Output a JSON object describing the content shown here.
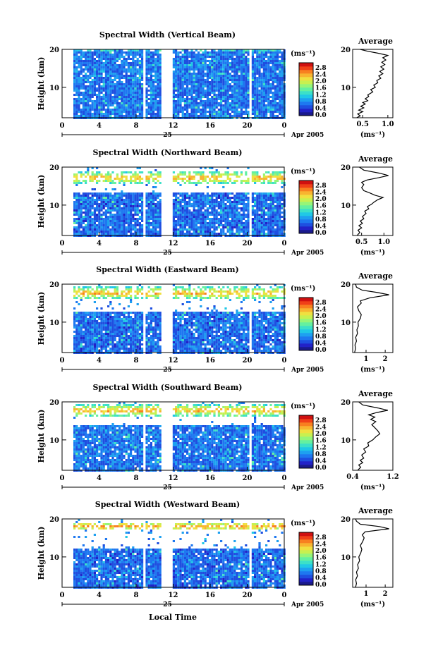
{
  "figure": {
    "xlabel": "Local Time",
    "day_label": "25",
    "month_label": "Apr 2005",
    "ylabel": "Height (km)",
    "colorbar_unit": "(ms⁻¹)",
    "average_title": "Average",
    "average_unit": "(ms⁻¹)"
  },
  "chart_data": [
    {
      "type": "heatmap",
      "title": "Spectral Width (Vertical Beam)",
      "x_ticks": [
        "0",
        "4",
        "8",
        "12",
        "16",
        "20",
        "0"
      ],
      "xlim": [
        0,
        24
      ],
      "y_ticks": [
        "20",
        "10"
      ],
      "ylim": [
        2,
        20
      ],
      "colorbar_ticks": [
        "2.8",
        "2.4",
        "2.0",
        "1.6",
        "1.2",
        "0.8",
        "0.4",
        "0.0"
      ],
      "gaps_hours": [
        [
          0,
          1.0
        ],
        [
          8.6,
          8.9
        ],
        [
          10.7,
          11.9
        ],
        [
          20.0,
          20.3
        ]
      ],
      "data_top_km": 19.6,
      "band_km": [],
      "low_level": 0.45,
      "average_profile": {
        "type": "line",
        "xlim": [
          0.3,
          1.1
        ],
        "x_ticks": [
          "0.5",
          "1.0"
        ],
        "y_ticks": [
          "20",
          "10"
        ],
        "points": [
          [
            0.38,
            2.0
          ],
          [
            0.45,
            2.5
          ],
          [
            0.4,
            3.0
          ],
          [
            0.5,
            3.6
          ],
          [
            0.42,
            4.0
          ],
          [
            0.52,
            4.6
          ],
          [
            0.46,
            5.0
          ],
          [
            0.55,
            5.6
          ],
          [
            0.5,
            6.0
          ],
          [
            0.6,
            6.5
          ],
          [
            0.55,
            7.0
          ],
          [
            0.62,
            7.6
          ],
          [
            0.6,
            8.0
          ],
          [
            0.7,
            8.8
          ],
          [
            0.66,
            9.4
          ],
          [
            0.75,
            10.0
          ],
          [
            0.72,
            10.6
          ],
          [
            0.8,
            11.2
          ],
          [
            0.78,
            11.8
          ],
          [
            0.86,
            12.4
          ],
          [
            0.82,
            13.0
          ],
          [
            0.9,
            13.6
          ],
          [
            0.84,
            14.2
          ],
          [
            0.92,
            14.8
          ],
          [
            0.86,
            15.4
          ],
          [
            0.94,
            16.0
          ],
          [
            0.88,
            16.6
          ],
          [
            0.96,
            17.2
          ],
          [
            0.9,
            17.8
          ],
          [
            1.0,
            18.4
          ],
          [
            0.8,
            19.0
          ],
          [
            0.6,
            19.5
          ],
          [
            0.45,
            20.0
          ]
        ]
      }
    },
    {
      "type": "heatmap",
      "title": "Spectral Width (Northward Beam)",
      "x_ticks": [
        "0",
        "4",
        "8",
        "12",
        "16",
        "20",
        "0"
      ],
      "xlim": [
        0,
        24
      ],
      "y_ticks": [
        "20",
        "10"
      ],
      "ylim": [
        2,
        20
      ],
      "colorbar_ticks": [
        "2.8",
        "2.4",
        "2.0",
        "1.6",
        "1.2",
        "0.8",
        "0.4",
        "0.0"
      ],
      "gaps_hours": [
        [
          0,
          1.0
        ],
        [
          8.6,
          8.9
        ],
        [
          10.7,
          11.9
        ],
        [
          20.0,
          20.3
        ]
      ],
      "data_top_km": 13.4,
      "band_km": [
        16.0,
        19.0
      ],
      "low_level": 0.4,
      "average_profile": {
        "type": "line",
        "xlim": [
          0.3,
          1.2
        ],
        "x_ticks": [
          "0.5",
          "1.0"
        ],
        "y_ticks": [
          "20",
          "10"
        ],
        "points": [
          [
            0.4,
            2.0
          ],
          [
            0.46,
            2.8
          ],
          [
            0.42,
            3.4
          ],
          [
            0.5,
            4.0
          ],
          [
            0.44,
            4.6
          ],
          [
            0.52,
            5.2
          ],
          [
            0.47,
            5.8
          ],
          [
            0.55,
            6.4
          ],
          [
            0.52,
            7.0
          ],
          [
            0.6,
            7.8
          ],
          [
            0.57,
            8.4
          ],
          [
            0.66,
            9.0
          ],
          [
            0.63,
            9.6
          ],
          [
            0.72,
            10.2
          ],
          [
            0.78,
            10.8
          ],
          [
            0.86,
            11.4
          ],
          [
            0.98,
            12.0
          ],
          [
            0.8,
            12.6
          ],
          [
            0.68,
            13.2
          ],
          [
            0.55,
            13.8
          ],
          [
            0.5,
            14.6
          ],
          [
            0.55,
            15.4
          ],
          [
            0.5,
            16.0
          ],
          [
            0.62,
            16.6
          ],
          [
            0.88,
            17.2
          ],
          [
            1.1,
            17.8
          ],
          [
            0.9,
            18.4
          ],
          [
            0.55,
            19.2
          ],
          [
            0.45,
            20.0
          ]
        ]
      }
    },
    {
      "type": "heatmap",
      "title": "Spectral Width (Eastward Beam)",
      "x_ticks": [
        "0",
        "4",
        "8",
        "12",
        "16",
        "20",
        "0"
      ],
      "xlim": [
        0,
        24
      ],
      "y_ticks": [
        "20",
        "10"
      ],
      "ylim": [
        2,
        20
      ],
      "colorbar_ticks": [
        "2.8",
        "2.4",
        "2.0",
        "1.6",
        "1.2",
        "0.8",
        "0.4",
        "0.0"
      ],
      "gaps_hours": [
        [
          0,
          1.0
        ],
        [
          8.6,
          8.9
        ],
        [
          10.7,
          11.9
        ],
        [
          20.0,
          20.3
        ]
      ],
      "data_top_km": 12.8,
      "band_km": [
        16.3,
        19.5
      ],
      "low_level": 0.4,
      "average_profile": {
        "type": "line",
        "xlim": [
          0.3,
          2.4
        ],
        "x_ticks": [
          "1",
          "2"
        ],
        "y_ticks": [
          "20",
          "10"
        ],
        "points": [
          [
            0.4,
            2.0
          ],
          [
            0.45,
            3.0
          ],
          [
            0.42,
            4.0
          ],
          [
            0.5,
            5.0
          ],
          [
            0.46,
            6.0
          ],
          [
            0.55,
            7.0
          ],
          [
            0.52,
            8.0
          ],
          [
            0.6,
            9.0
          ],
          [
            0.58,
            10.0
          ],
          [
            0.7,
            11.0
          ],
          [
            0.75,
            12.0
          ],
          [
            0.62,
            13.0
          ],
          [
            0.55,
            14.0
          ],
          [
            0.75,
            15.0
          ],
          [
            0.7,
            15.6
          ],
          [
            1.2,
            16.4
          ],
          [
            2.2,
            17.2
          ],
          [
            1.6,
            17.8
          ],
          [
            0.8,
            18.4
          ],
          [
            0.5,
            19.2
          ],
          [
            0.45,
            20.0
          ]
        ]
      }
    },
    {
      "type": "heatmap",
      "title": "Spectral Width (Southward Beam)",
      "x_ticks": [
        "0",
        "4",
        "8",
        "12",
        "16",
        "20",
        "0"
      ],
      "xlim": [
        0,
        24
      ],
      "y_ticks": [
        "20",
        "10"
      ],
      "ylim": [
        2,
        20
      ],
      "colorbar_ticks": [
        "2.8",
        "2.4",
        "2.0",
        "1.6",
        "1.2",
        "0.8",
        "0.4",
        "0.0"
      ],
      "gaps_hours": [
        [
          0,
          1.0
        ],
        [
          8.6,
          8.9
        ],
        [
          10.7,
          11.9
        ],
        [
          20.0,
          20.3
        ]
      ],
      "data_top_km": 14.2,
      "band_km": [
        16.4,
        19.6
      ],
      "low_level": 0.45,
      "average_profile": {
        "type": "line",
        "xlim": [
          0.4,
          1.2
        ],
        "x_ticks": [
          "0.4",
          "1.2"
        ],
        "y_ticks": [
          "20",
          "10"
        ],
        "points": [
          [
            0.5,
            2.0
          ],
          [
            0.56,
            2.8
          ],
          [
            0.52,
            3.4
          ],
          [
            0.6,
            4.0
          ],
          [
            0.55,
            4.6
          ],
          [
            0.62,
            5.2
          ],
          [
            0.58,
            6.0
          ],
          [
            0.66,
            6.8
          ],
          [
            0.62,
            7.6
          ],
          [
            0.72,
            8.4
          ],
          [
            0.7,
            9.2
          ],
          [
            0.8,
            10.0
          ],
          [
            0.86,
            10.8
          ],
          [
            0.94,
            11.6
          ],
          [
            0.9,
            12.4
          ],
          [
            0.84,
            13.2
          ],
          [
            0.78,
            14.0
          ],
          [
            0.86,
            14.8
          ],
          [
            0.76,
            15.4
          ],
          [
            0.84,
            16.0
          ],
          [
            0.72,
            16.6
          ],
          [
            0.88,
            17.2
          ],
          [
            1.1,
            17.8
          ],
          [
            0.9,
            18.4
          ],
          [
            0.6,
            19.2
          ],
          [
            0.52,
            20.0
          ]
        ]
      }
    },
    {
      "type": "heatmap",
      "title": "Spectral Width (Westward Beam)",
      "x_ticks": [
        "0",
        "4",
        "8",
        "12",
        "16",
        "20",
        "0"
      ],
      "xlim": [
        0,
        24
      ],
      "y_ticks": [
        "20",
        "10"
      ],
      "ylim": [
        2,
        20
      ],
      "colorbar_ticks": [
        "2.8",
        "2.4",
        "2.0",
        "1.6",
        "1.2",
        "0.8",
        "0.4",
        "0.0"
      ],
      "gaps_hours": [
        [
          0,
          1.0
        ],
        [
          8.6,
          8.9
        ],
        [
          10.7,
          11.9
        ],
        [
          20.0,
          20.3
        ]
      ],
      "data_top_km": 12.6,
      "band_km": [
        17.4,
        19.2
      ],
      "low_level": 0.4,
      "average_profile": {
        "type": "line",
        "xlim": [
          0.3,
          2.4
        ],
        "x_ticks": [
          "1",
          "2"
        ],
        "y_ticks": [
          "20",
          "10"
        ],
        "points": [
          [
            0.45,
            2.0
          ],
          [
            0.5,
            3.0
          ],
          [
            0.46,
            4.0
          ],
          [
            0.55,
            5.0
          ],
          [
            0.5,
            6.0
          ],
          [
            0.6,
            7.0
          ],
          [
            0.56,
            8.0
          ],
          [
            0.66,
            9.0
          ],
          [
            0.62,
            10.0
          ],
          [
            0.72,
            11.0
          ],
          [
            0.78,
            12.0
          ],
          [
            0.7,
            13.0
          ],
          [
            0.82,
            14.0
          ],
          [
            0.9,
            15.0
          ],
          [
            0.8,
            15.8
          ],
          [
            0.95,
            16.6
          ],
          [
            2.2,
            17.4
          ],
          [
            1.7,
            18.0
          ],
          [
            0.7,
            18.6
          ],
          [
            0.5,
            19.4
          ],
          [
            0.45,
            20.0
          ]
        ]
      }
    }
  ]
}
